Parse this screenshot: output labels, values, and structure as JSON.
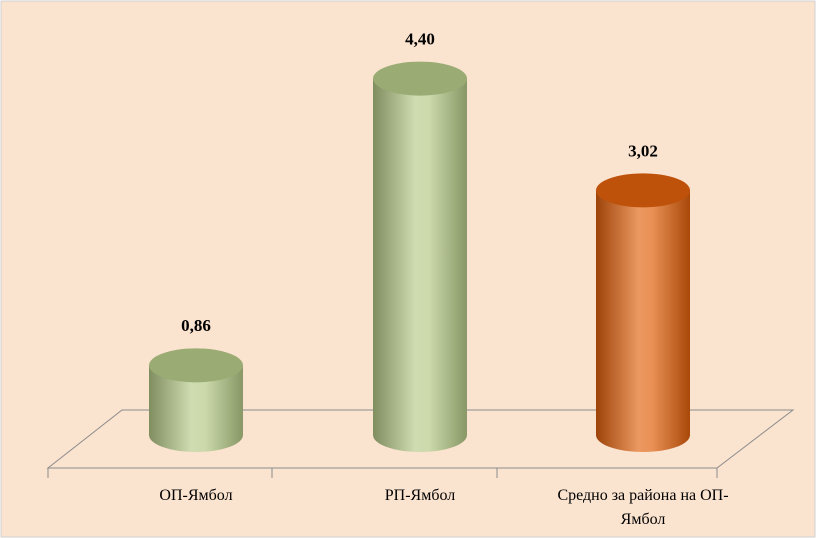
{
  "chart_data": {
    "type": "bar",
    "categories": [
      "ОП-Ямбол",
      "РП-Ямбол",
      "Средно за района на ОП-Ямбол"
    ],
    "values": [
      0.86,
      4.4,
      3.02
    ],
    "value_labels": [
      "0,86",
      "4,40",
      "3,02"
    ],
    "colors": [
      "#b5c987",
      "#b5c987",
      "#e0600c"
    ]
  }
}
